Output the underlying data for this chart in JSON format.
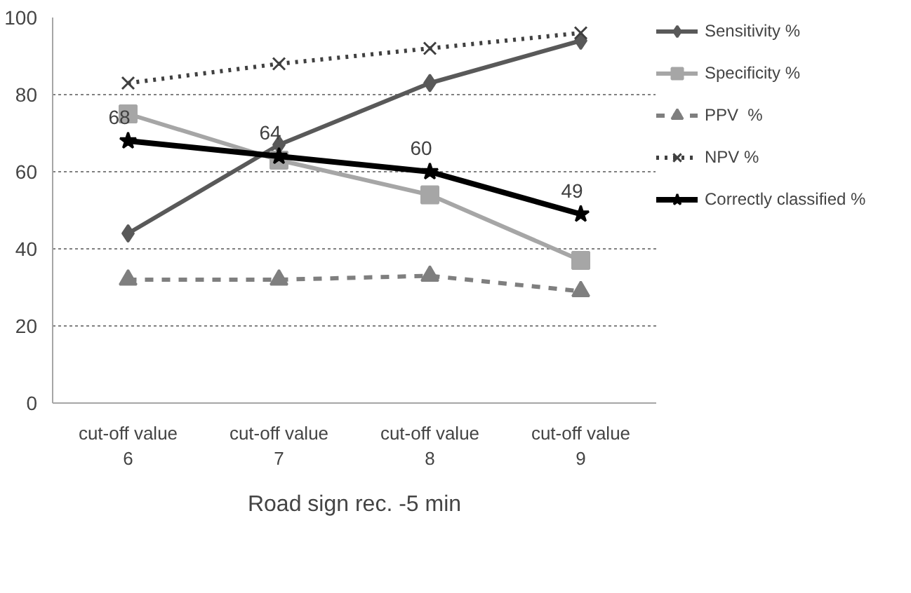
{
  "chart_data": {
    "type": "line",
    "categories": [
      "cut-off value 6",
      "cut-off value 7",
      "cut-off value 8",
      "cut-off value 9"
    ],
    "xlabel": "Road sign rec. -5 min",
    "ylim": [
      0,
      100
    ],
    "yticks": [
      0,
      20,
      40,
      60,
      80,
      100
    ],
    "grid": "y",
    "legend": "right",
    "series": [
      {
        "name": "Sensitivity %",
        "color": "#595959",
        "marker": "diamond",
        "line_style": "solid",
        "values": [
          44,
          67,
          83,
          94
        ]
      },
      {
        "name": "Specificity %",
        "color": "#a6a6a6",
        "marker": "square",
        "line_style": "solid",
        "values": [
          75,
          63,
          54,
          37
        ]
      },
      {
        "name": "PPV  %",
        "color": "#7f7f7f",
        "marker": "triangle",
        "line_style": "dashed",
        "values": [
          32,
          32,
          33,
          29
        ]
      },
      {
        "name": "NPV %",
        "color": "#404040",
        "marker": "cross",
        "line_style": "dotted",
        "values": [
          83,
          88,
          92,
          96
        ]
      },
      {
        "name": "Correctly classified %",
        "color": "#000000",
        "marker": "star",
        "line_style": "solid",
        "values": [
          68,
          64,
          60,
          49
        ],
        "value_labels": [
          "68",
          "64",
          "60",
          "49"
        ]
      }
    ]
  }
}
